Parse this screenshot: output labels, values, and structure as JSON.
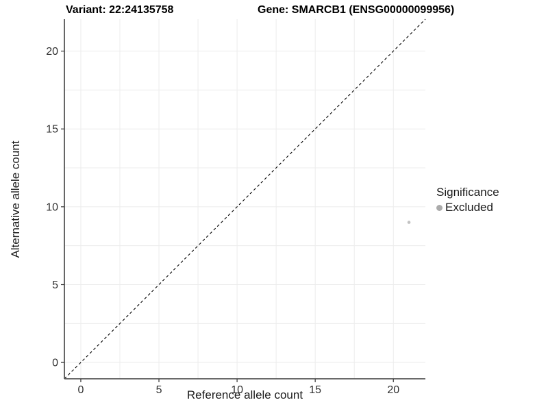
{
  "chart_data": {
    "type": "scatter",
    "title_left": "Variant: 22:24135758",
    "title_right": "Gene: SMARCB1 (ENSG00000099956)",
    "xlabel": "Reference allele count",
    "ylabel": "Alternative allele count",
    "xlim": [
      -1.05,
      22.05
    ],
    "ylim": [
      -1.05,
      22.05
    ],
    "xticks": [
      0,
      5,
      10,
      15,
      20
    ],
    "yticks": [
      0,
      5,
      10,
      15,
      20
    ],
    "minor_ticks": [
      2.5,
      7.5,
      12.5,
      17.5
    ],
    "grid": true,
    "abline": {
      "slope": 1,
      "intercept": 0,
      "style": "dashed",
      "color": "#000000"
    },
    "series": [
      {
        "name": "Excluded",
        "color": "#c2c2c2",
        "points": [
          {
            "x": 21,
            "y": 9
          }
        ]
      }
    ],
    "legend": {
      "title": "Significance",
      "position": "right",
      "entries": [
        {
          "label": "Excluded",
          "color": "#ababab"
        }
      ]
    },
    "colors": {
      "background": "#ffffff",
      "grid": "#ececec",
      "axis_line": "#555555",
      "tick_mark": "#333333",
      "tick_label": "#303030"
    }
  }
}
